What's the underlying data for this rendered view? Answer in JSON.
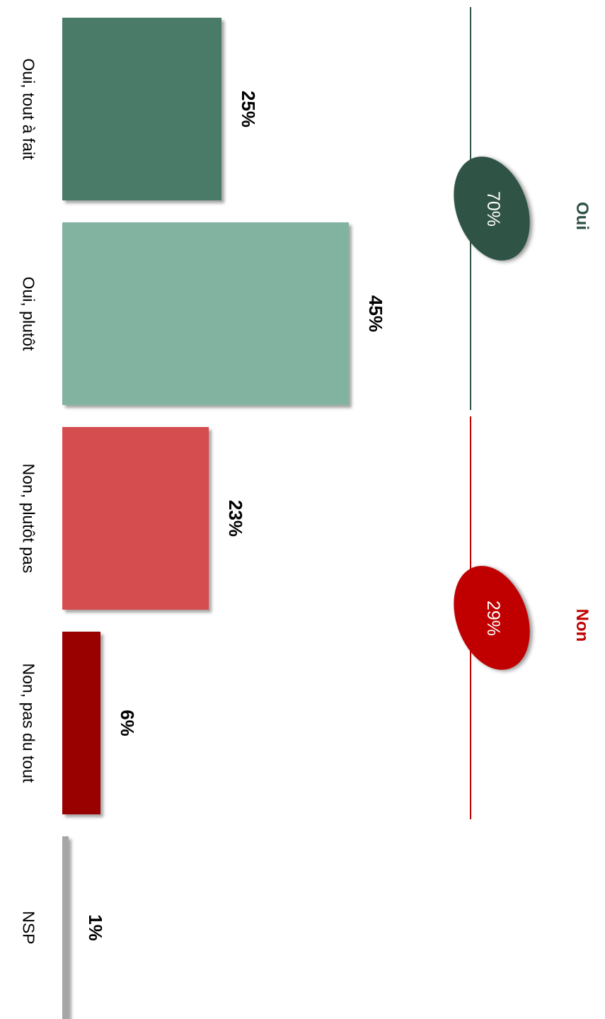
{
  "chart_data": {
    "type": "bar",
    "categories": [
      "Oui, tout à fait",
      "Oui, plutôt",
      "Non, plutôt pas",
      "Non, pas du tout",
      "NSP"
    ],
    "values": [
      25,
      45,
      23,
      6,
      1
    ],
    "value_labels": [
      "25%",
      "45%",
      "23%",
      "6%",
      "1%"
    ],
    "colors": [
      "#4a7a68",
      "#82b3a0",
      "#d64d50",
      "#990000",
      "#a6a6a6"
    ],
    "groups": [
      {
        "name": "Oui",
        "value": 70,
        "label": "70%",
        "color": "#2f5345",
        "members": [
          0,
          1
        ]
      },
      {
        "name": "Non",
        "value": 29,
        "label": "29%",
        "color": "#c00000",
        "members": [
          2,
          3
        ]
      }
    ]
  }
}
